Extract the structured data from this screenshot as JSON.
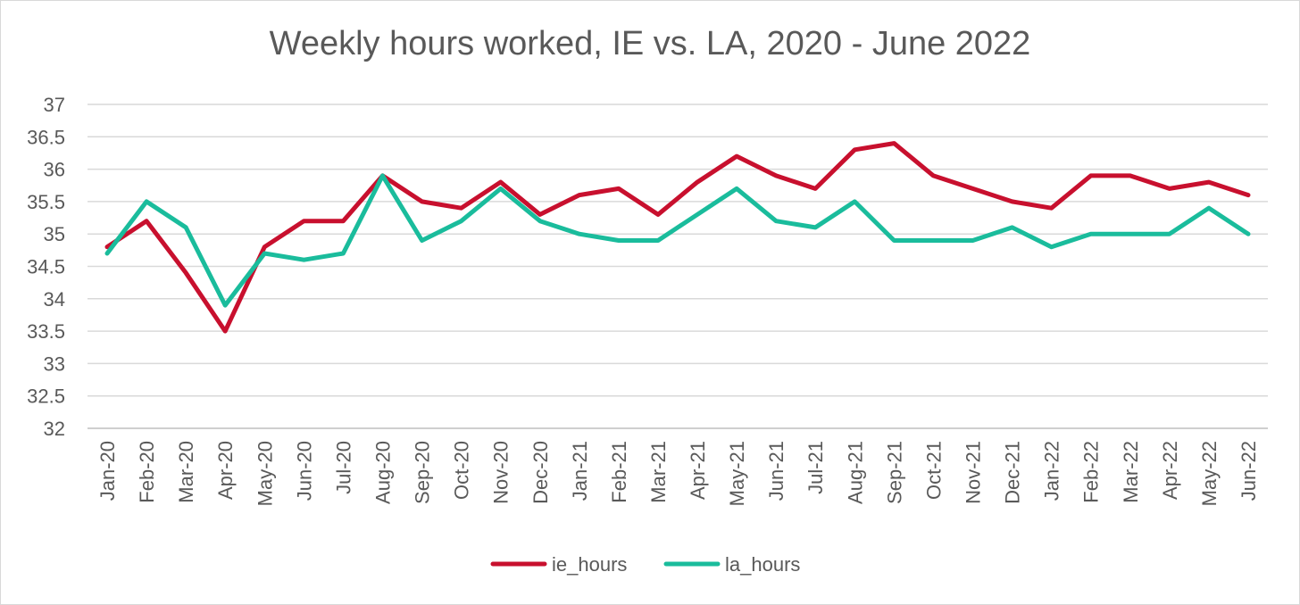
{
  "chart_data": {
    "type": "line",
    "title": "Weekly hours worked, IE vs. LA, 2020 - June 2022",
    "xlabel": "",
    "ylabel": "",
    "ylim": [
      32,
      37
    ],
    "yticks": [
      "32",
      "32.5",
      "33",
      "33.5",
      "34",
      "34.5",
      "35",
      "35.5",
      "36",
      "36.5",
      "37"
    ],
    "grid": true,
    "legend_position": "bottom",
    "categories": [
      "Jan-20",
      "Feb-20",
      "Mar-20",
      "Apr-20",
      "May-20",
      "Jun-20",
      "Jul-20",
      "Aug-20",
      "Sep-20",
      "Oct-20",
      "Nov-20",
      "Dec-20",
      "Jan-21",
      "Feb-21",
      "Mar-21",
      "Apr-21",
      "May-21",
      "Jun-21",
      "Jul-21",
      "Aug-21",
      "Sep-21",
      "Oct-21",
      "Nov-21",
      "Dec-21",
      "Jan-22",
      "Feb-22",
      "Mar-22",
      "Apr-22",
      "May-22",
      "Jun-22"
    ],
    "series": [
      {
        "name": "ie_hours",
        "color": "#c8102e",
        "values": [
          34.8,
          35.2,
          34.4,
          33.5,
          34.8,
          35.2,
          35.2,
          35.9,
          35.5,
          35.4,
          35.8,
          35.3,
          35.6,
          35.7,
          35.3,
          35.8,
          36.2,
          35.9,
          35.7,
          36.3,
          36.4,
          35.9,
          35.7,
          35.5,
          35.4,
          35.9,
          35.9,
          35.7,
          35.8,
          35.6
        ]
      },
      {
        "name": "la_hours",
        "color": "#1abc9c",
        "values": [
          34.7,
          35.5,
          35.1,
          33.9,
          34.7,
          34.6,
          34.7,
          35.9,
          34.9,
          35.2,
          35.7,
          35.2,
          35.0,
          34.9,
          34.9,
          35.3,
          35.7,
          35.2,
          35.1,
          35.5,
          34.9,
          34.9,
          34.9,
          35.1,
          34.8,
          35.0,
          35.0,
          35.0,
          35.4,
          35.0
        ]
      }
    ]
  }
}
